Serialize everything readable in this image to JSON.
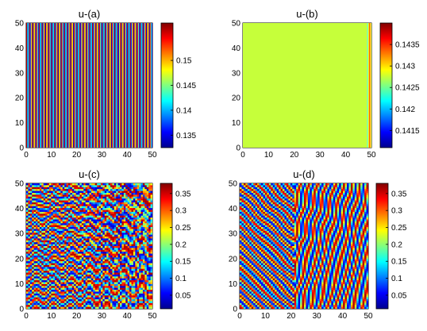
{
  "chart_data": [
    {
      "type": "heatmap",
      "title": "u-(a)",
      "pattern": "vertical stripes",
      "xlim": [
        0,
        50
      ],
      "ylim": [
        0,
        50
      ],
      "xticks": [
        "0",
        "10",
        "20",
        "30",
        "40",
        "50"
      ],
      "yticks": [
        "0",
        "10",
        "20",
        "30",
        "40",
        "50"
      ],
      "colorbar": {
        "range": [
          0.1325,
          0.1575
        ],
        "ticks": [
          "0.135",
          "0.14",
          "0.145",
          "0.15"
        ],
        "colormap": "jet"
      }
    },
    {
      "type": "heatmap",
      "title": "u-(b)",
      "pattern": "nearly uniform field with thin stripes at right edge",
      "xlim": [
        0,
        50
      ],
      "ylim": [
        0,
        50
      ],
      "xticks": [
        "0",
        "10",
        "20",
        "30",
        "40",
        "50"
      ],
      "yticks": [
        "0",
        "10",
        "20",
        "30",
        "40",
        "50"
      ],
      "colorbar": {
        "range": [
          0.1411,
          0.144
        ],
        "ticks": [
          "0.1415",
          "0.142",
          "0.1425",
          "0.143",
          "0.1435"
        ],
        "colormap": "jet"
      }
    },
    {
      "type": "heatmap",
      "title": "u-(c)",
      "pattern": "labyrinthine stripes",
      "xlim": [
        0,
        50
      ],
      "ylim": [
        0,
        50
      ],
      "xticks": [
        "0",
        "10",
        "20",
        "30",
        "40",
        "50"
      ],
      "yticks": [
        "0",
        "10",
        "20",
        "30",
        "40",
        "50"
      ],
      "colorbar": {
        "range": [
          0.01,
          0.38
        ],
        "ticks": [
          "0.05",
          "0.1",
          "0.15",
          "0.2",
          "0.25",
          "0.3",
          "0.35"
        ],
        "colormap": "jet"
      }
    },
    {
      "type": "heatmap",
      "title": "u-(d)",
      "pattern": "labyrinthine stripes",
      "xlim": [
        0,
        50
      ],
      "ylim": [
        0,
        50
      ],
      "xticks": [
        "0",
        "10",
        "20",
        "30",
        "40",
        "50"
      ],
      "yticks": [
        "0",
        "10",
        "20",
        "30",
        "40",
        "50"
      ],
      "colorbar": {
        "range": [
          0.01,
          0.38
        ],
        "ticks": [
          "0.05",
          "0.1",
          "0.15",
          "0.2",
          "0.25",
          "0.3",
          "0.35"
        ],
        "colormap": "jet"
      }
    }
  ]
}
